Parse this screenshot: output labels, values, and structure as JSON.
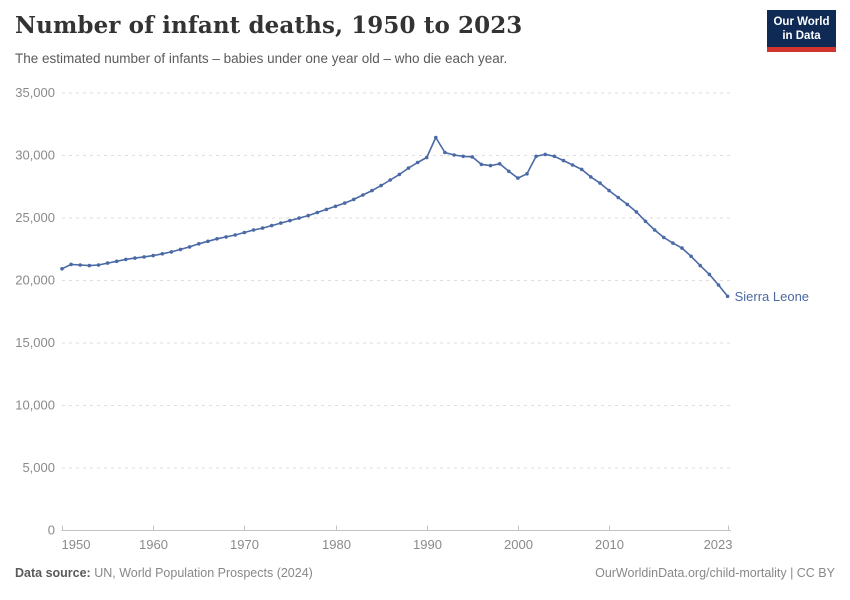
{
  "header": {
    "title": "Number of infant deaths, 1950 to 2023",
    "subtitle": "The estimated number of infants – babies under one year old – who die each year.",
    "logo": {
      "line1": "Our World",
      "line2": "in Data"
    }
  },
  "footer": {
    "source_label": "Data source:",
    "source_text": " UN, World Population Prospects (2024)",
    "credit": "OurWorldinData.org/child-mortality | CC BY"
  },
  "colors": {
    "series_blue": "#4a69a5",
    "gridline": "#dedede",
    "axis": "#c4c4c4",
    "tick_label": "#8a8a8a",
    "logo_navy": "#0e2a55",
    "logo_red": "#d0342c"
  },
  "chart_data": {
    "type": "line",
    "title": "Number of infant deaths, 1950 to 2023",
    "subtitle": "The estimated number of infants – babies under one year old – who die each year.",
    "xlabel": "",
    "ylabel": "",
    "x_range": [
      1950,
      2023
    ],
    "ylim": [
      0,
      35000
    ],
    "yticks": [
      0,
      5000,
      10000,
      15000,
      20000,
      25000,
      30000,
      35000
    ],
    "xticks": [
      1950,
      1960,
      1970,
      1980,
      1990,
      2000,
      2010,
      2023
    ],
    "grid": "horizontal dashed",
    "legend": "end-of-line entity label",
    "years": [
      1950,
      1951,
      1952,
      1953,
      1954,
      1955,
      1956,
      1957,
      1958,
      1959,
      1960,
      1961,
      1962,
      1963,
      1964,
      1965,
      1966,
      1967,
      1968,
      1969,
      1970,
      1971,
      1972,
      1973,
      1974,
      1975,
      1976,
      1977,
      1978,
      1979,
      1980,
      1981,
      1982,
      1983,
      1984,
      1985,
      1986,
      1987,
      1988,
      1989,
      1990,
      1991,
      1992,
      1993,
      1994,
      1995,
      1996,
      1997,
      1998,
      1999,
      2000,
      2001,
      2002,
      2003,
      2004,
      2005,
      2006,
      2007,
      2008,
      2009,
      2010,
      2011,
      2012,
      2013,
      2014,
      2015,
      2016,
      2017,
      2018,
      2019,
      2020,
      2021,
      2022,
      2023
    ],
    "series": [
      {
        "name": "Sierra Leone",
        "color": "#4a69a5",
        "values": [
          20900,
          21250,
          21200,
          21150,
          21200,
          21350,
          21500,
          21650,
          21750,
          21850,
          21950,
          22100,
          22250,
          22450,
          22650,
          22900,
          23100,
          23300,
          23450,
          23600,
          23800,
          24000,
          24150,
          24350,
          24550,
          24750,
          24950,
          25150,
          25400,
          25650,
          25900,
          26150,
          26450,
          26800,
          27150,
          27550,
          28000,
          28450,
          28950,
          29400,
          29800,
          31400,
          30200,
          30000,
          29900,
          29850,
          29250,
          29150,
          29300,
          28700,
          28150,
          28500,
          29900,
          30050,
          29900,
          29550,
          29200,
          28850,
          28250,
          27750,
          27150,
          26600,
          26050,
          25450,
          24700,
          24000,
          23400,
          22950,
          22550,
          21900,
          21150,
          20450,
          19600,
          18700
        ]
      }
    ]
  }
}
